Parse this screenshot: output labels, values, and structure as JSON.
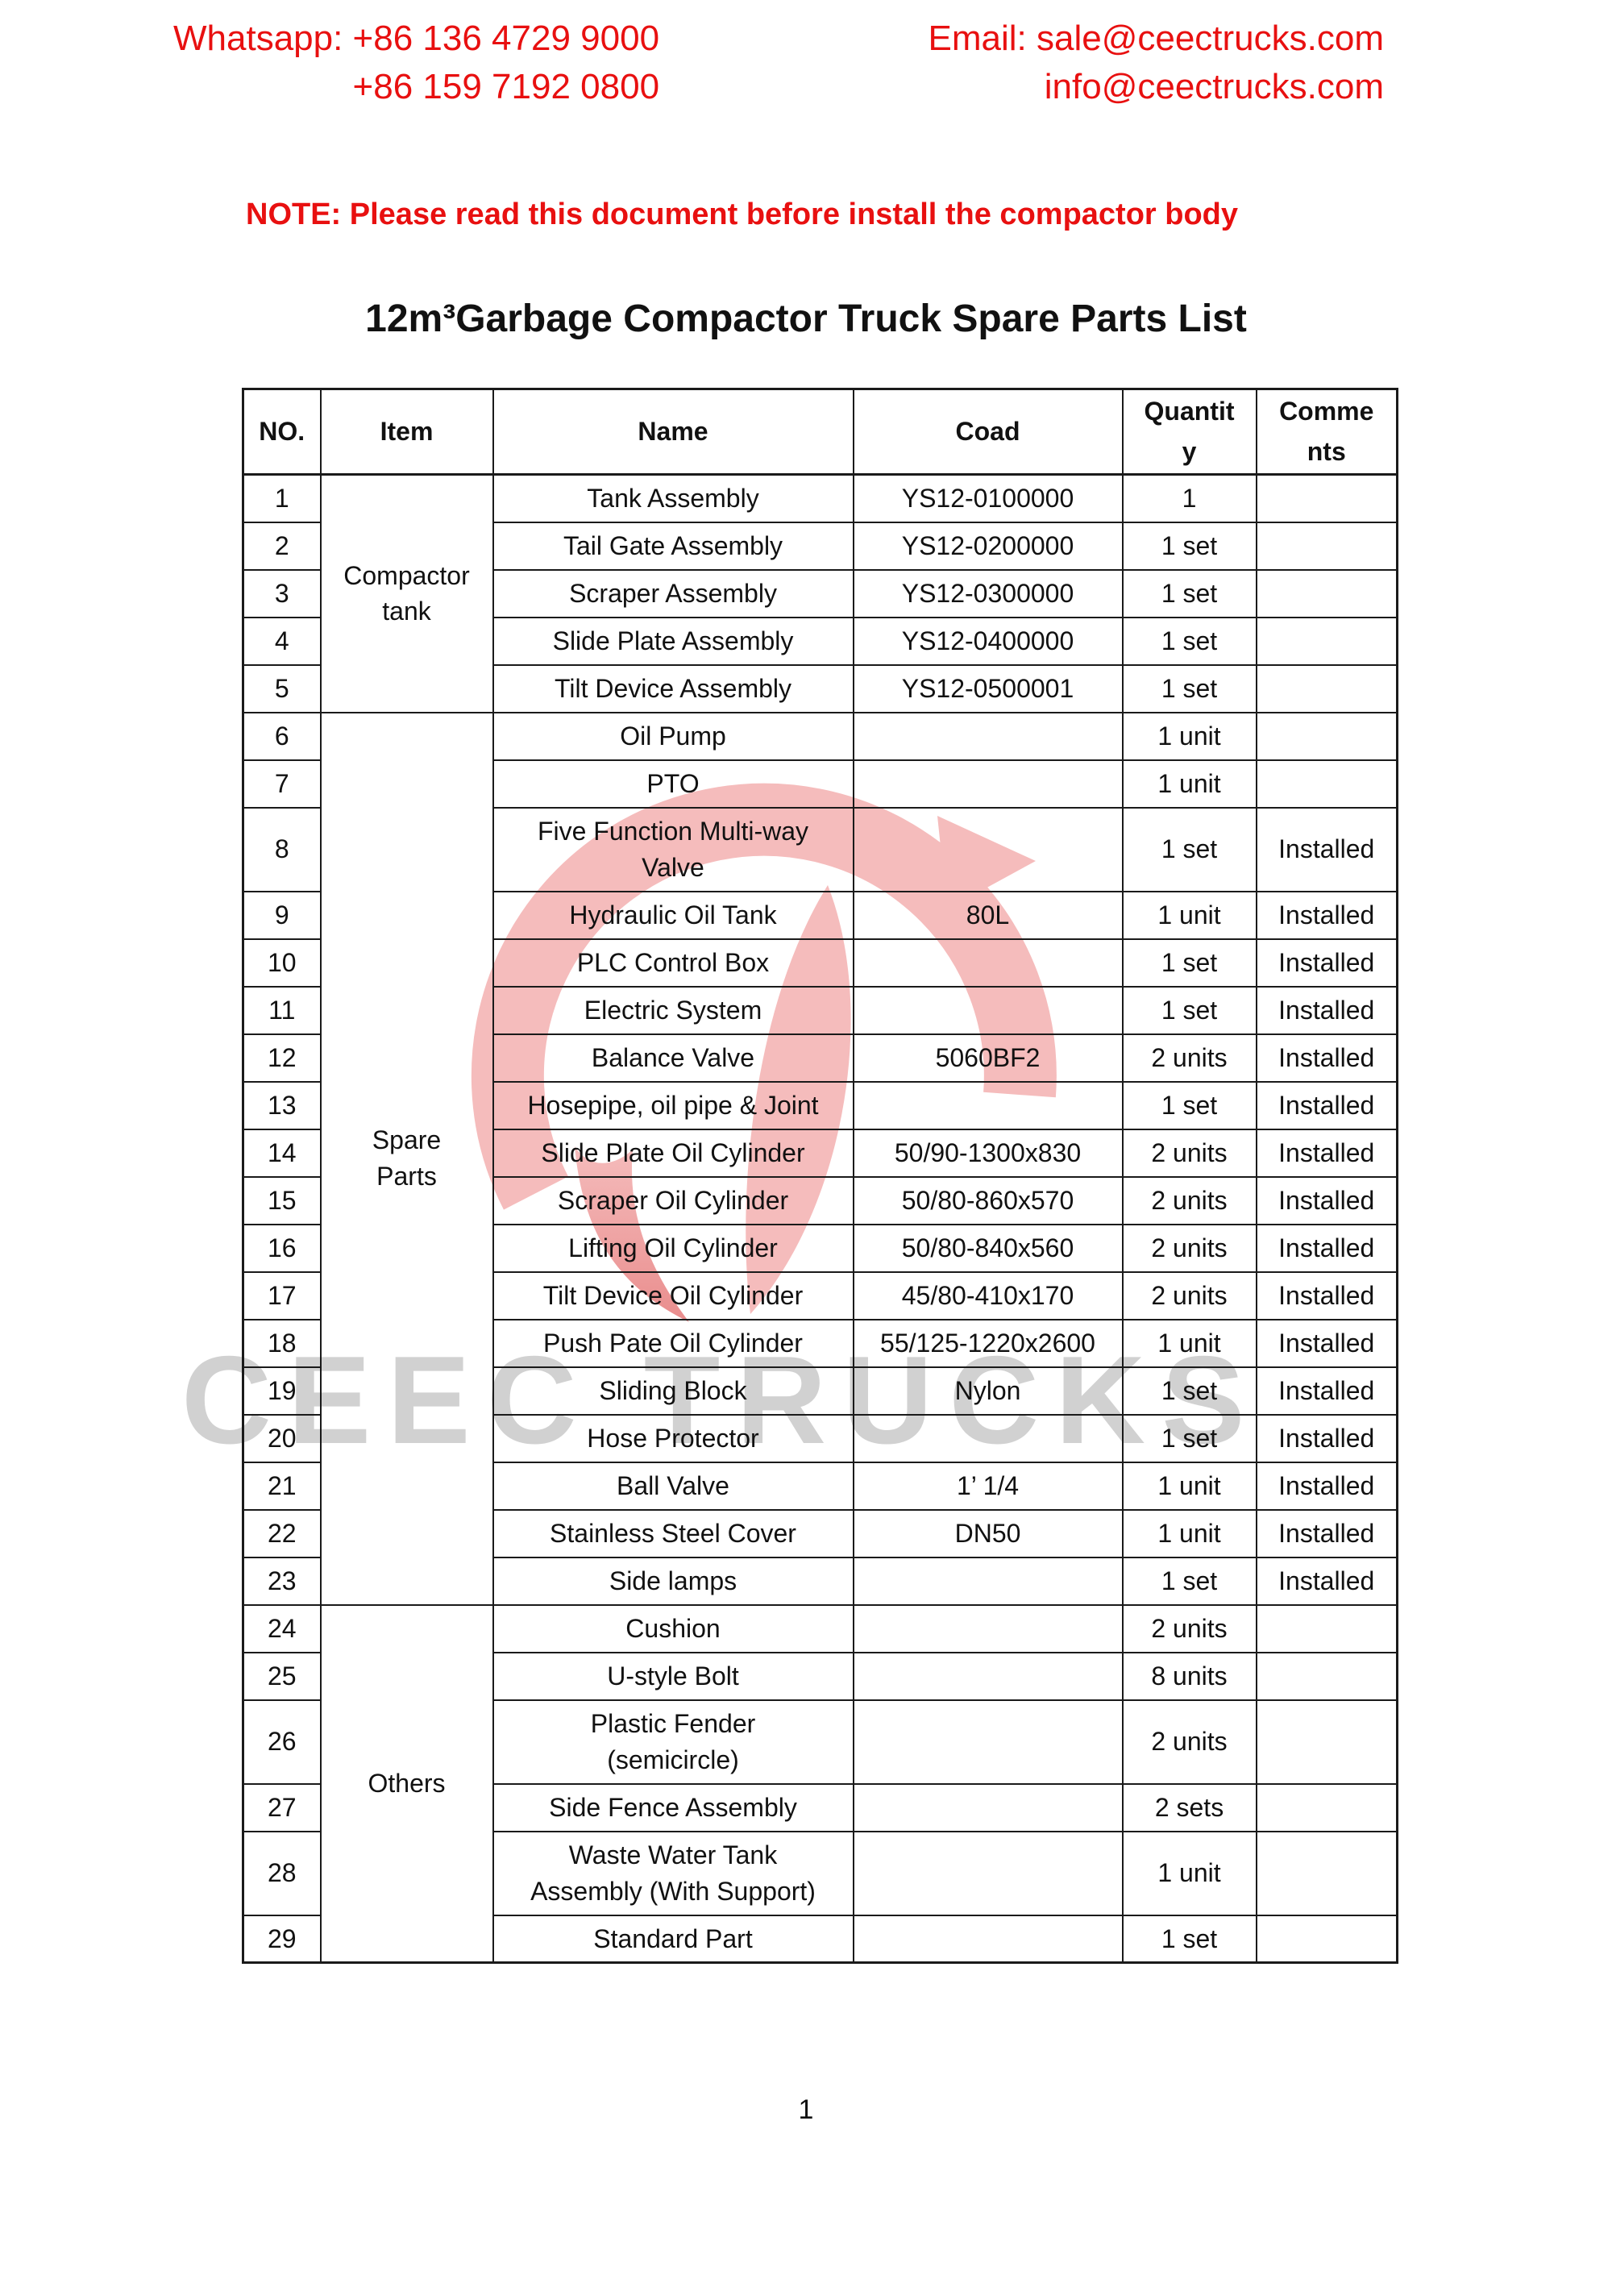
{
  "header": {
    "whatsapp_line1": "Whatsapp: +86 136 4729 9000",
    "whatsapp_line2": "+86 159 7192 0800",
    "email_line1": "Email: sale@ceectrucks.com",
    "email_line2": "info@ceectrucks.com",
    "note": "NOTE: Please read this document before install the compactor body",
    "title": "12m³Garbage Compactor Truck Spare Parts List"
  },
  "watermark": {
    "text": "CEEC TRUCKS",
    "logo": "ceec-swoosh-logo"
  },
  "colors": {
    "accent_red": "#e81010",
    "table_border": "#1a1a1a",
    "watermark_gray": "#c9c9c9",
    "logo_pink": "#f5bcbc",
    "logo_pink_deep": "#e98d8d"
  },
  "footer": {
    "page_number": "1"
  },
  "table": {
    "columns": [
      "NO.",
      "Item",
      "Name",
      "Coad",
      "Quantit\ny",
      "Comme\nnts"
    ],
    "groups": [
      {
        "item": "Compactor\ntank",
        "rows": [
          {
            "no": "1",
            "name": "Tank Assembly",
            "coad": "YS12-0100000",
            "qty": "1",
            "comments": ""
          },
          {
            "no": "2",
            "name": "Tail Gate Assembly",
            "coad": "YS12-0200000",
            "qty": "1 set",
            "comments": ""
          },
          {
            "no": "3",
            "name": "Scraper Assembly",
            "coad": "YS12-0300000",
            "qty": "1 set",
            "comments": ""
          },
          {
            "no": "4",
            "name": "Slide Plate Assembly",
            "coad": "YS12-0400000",
            "qty": "1 set",
            "comments": ""
          },
          {
            "no": "5",
            "name": "Tilt Device Assembly",
            "coad": "YS12-0500001",
            "qty": "1 set",
            "comments": ""
          }
        ]
      },
      {
        "item": "Spare\nParts",
        "rows": [
          {
            "no": "6",
            "name": "Oil Pump",
            "coad": "",
            "qty": "1 unit",
            "comments": ""
          },
          {
            "no": "7",
            "name": "PTO",
            "coad": "",
            "qty": "1 unit",
            "comments": ""
          },
          {
            "no": "8",
            "name": "Five Function Multi-way\nValve",
            "coad": "",
            "qty": "1 set",
            "comments": "Installed",
            "tall": true
          },
          {
            "no": "9",
            "name": "Hydraulic Oil Tank",
            "coad": "80L",
            "qty": "1 unit",
            "comments": "Installed"
          },
          {
            "no": "10",
            "name": "PLC Control Box",
            "coad": "",
            "qty": "1 set",
            "comments": "Installed"
          },
          {
            "no": "11",
            "name": "Electric System",
            "coad": "",
            "qty": "1 set",
            "comments": "Installed"
          },
          {
            "no": "12",
            "name": "Balance Valve",
            "coad": "5060BF2",
            "qty": "2 units",
            "comments": "Installed"
          },
          {
            "no": "13",
            "name": "Hosepipe, oil pipe & Joint",
            "coad": "",
            "qty": "1 set",
            "comments": "Installed"
          },
          {
            "no": "14",
            "name": "Slide Plate Oil Cylinder",
            "coad": "50/90-1300x830",
            "qty": "2 units",
            "comments": "Installed"
          },
          {
            "no": "15",
            "name": "Scraper Oil Cylinder",
            "coad": "50/80-860x570",
            "qty": "2 units",
            "comments": "Installed"
          },
          {
            "no": "16",
            "name": "Lifting Oil Cylinder",
            "coad": "50/80-840x560",
            "qty": "2 units",
            "comments": "Installed"
          },
          {
            "no": "17",
            "name": "Tilt Device Oil Cylinder",
            "coad": "45/80-410x170",
            "qty": "2 units",
            "comments": "Installed"
          },
          {
            "no": "18",
            "name": "Push Pate Oil Cylinder",
            "coad": "55/125-1220x2600",
            "qty": "1 unit",
            "comments": "Installed"
          },
          {
            "no": "19",
            "name": "Sliding Block",
            "coad": "Nylon",
            "qty": "1 set",
            "comments": "Installed"
          },
          {
            "no": "20",
            "name": "Hose Protector",
            "coad": "",
            "qty": "1 set",
            "comments": "Installed"
          },
          {
            "no": "21",
            "name": "Ball Valve",
            "coad": "1’ 1/4",
            "qty": "1 unit",
            "comments": "Installed"
          },
          {
            "no": "22",
            "name": "Stainless Steel Cover",
            "coad": "DN50",
            "qty": "1 unit",
            "comments": "Installed"
          },
          {
            "no": "23",
            "name": "Side lamps",
            "coad": "",
            "qty": "1 set",
            "comments": "Installed"
          }
        ]
      },
      {
        "item": "Others",
        "rows": [
          {
            "no": "24",
            "name": "Cushion",
            "coad": "",
            "qty": "2 units",
            "comments": ""
          },
          {
            "no": "25",
            "name": "U-style Bolt",
            "coad": "",
            "qty": "8 units",
            "comments": ""
          },
          {
            "no": "26",
            "name": "Plastic Fender\n(semicircle)",
            "coad": "",
            "qty": "2 units",
            "comments": "",
            "tall": true
          },
          {
            "no": "27",
            "name": "Side Fence Assembly",
            "coad": "",
            "qty": "2 sets",
            "comments": ""
          },
          {
            "no": "28",
            "name": "Waste Water Tank\nAssembly (With Support)",
            "coad": "",
            "qty": "1 unit",
            "comments": "",
            "tall": true
          },
          {
            "no": "29",
            "name": "Standard Part",
            "coad": "",
            "qty": "1 set",
            "comments": ""
          }
        ]
      }
    ]
  }
}
